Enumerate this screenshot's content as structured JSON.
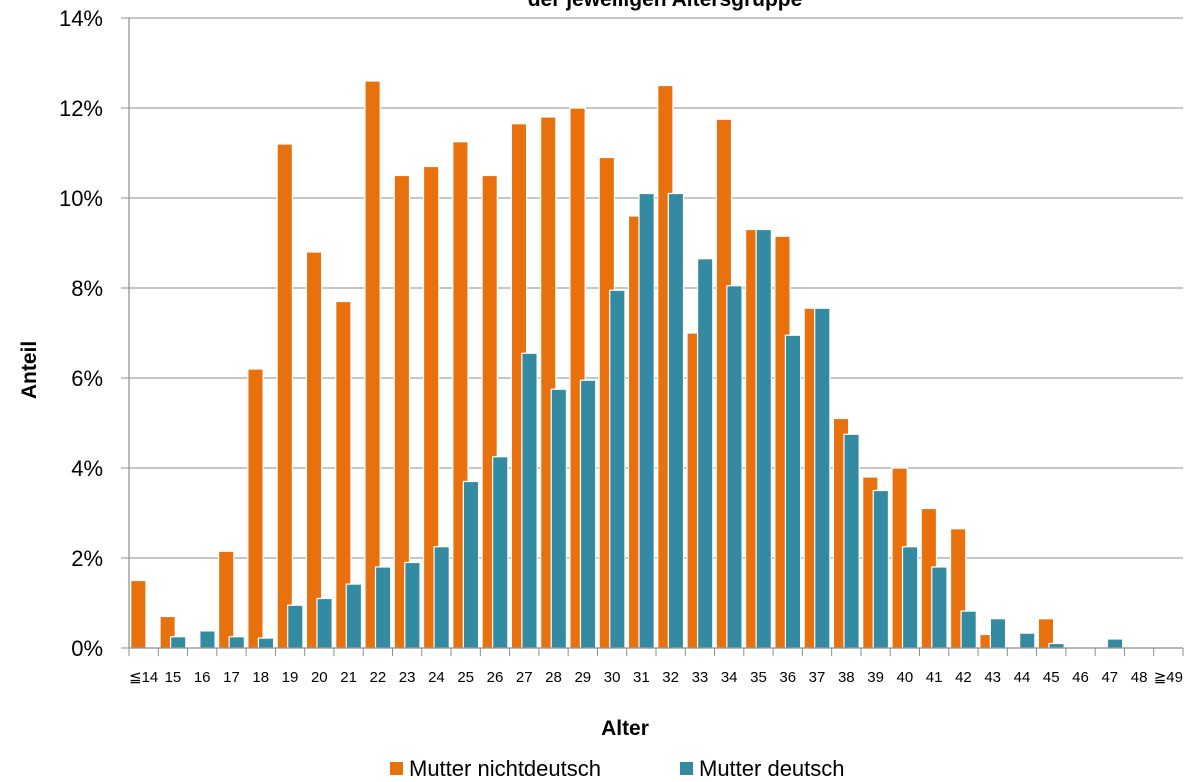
{
  "colors": {
    "series_a": "#e8710e",
    "series_b": "#348aa0",
    "grid": "#8c8c8c",
    "axis": "#8c8c8c"
  },
  "chart_data": {
    "type": "bar",
    "title": "der jeweiligen Altersgruppe",
    "xlabel": "Alter",
    "ylabel": "Anteil",
    "ylim": [
      0,
      14
    ],
    "y_ticks": [
      "0%",
      "2%",
      "4%",
      "6%",
      "8%",
      "10%",
      "12%",
      "14%"
    ],
    "grid": true,
    "legend": "bottom",
    "categories": [
      "≦14",
      "15",
      "16",
      "17",
      "18",
      "19",
      "20",
      "21",
      "22",
      "23",
      "24",
      "25",
      "26",
      "27",
      "28",
      "29",
      "30",
      "31",
      "32",
      "33",
      "34",
      "35",
      "36",
      "37",
      "38",
      "39",
      "40",
      "41",
      "42",
      "43",
      "44",
      "45",
      "46",
      "47",
      "48",
      "≧49"
    ],
    "series": [
      {
        "name": "Mutter nichtdeutsch",
        "values": [
          1.5,
          0.7,
          0,
          2.15,
          6.2,
          11.2,
          8.8,
          7.7,
          12.6,
          10.5,
          10.7,
          11.25,
          10.5,
          11.65,
          11.8,
          12.0,
          10.9,
          9.6,
          12.5,
          7.0,
          11.75,
          9.3,
          9.15,
          7.55,
          5.1,
          3.8,
          4.0,
          3.1,
          2.65,
          0.3,
          0,
          0.65,
          0,
          0,
          0,
          0
        ]
      },
      {
        "name": "Mutter deutsch",
        "values": [
          0,
          0.25,
          0.38,
          0.25,
          0.22,
          0.95,
          1.1,
          1.42,
          1.8,
          1.9,
          2.25,
          3.7,
          4.25,
          6.55,
          5.75,
          5.95,
          7.95,
          10.1,
          10.1,
          8.65,
          8.05,
          9.3,
          6.95,
          7.55,
          4.75,
          3.5,
          2.25,
          1.8,
          0.82,
          0.65,
          0.33,
          0.1,
          0,
          0.2,
          0,
          0
        ]
      }
    ]
  }
}
